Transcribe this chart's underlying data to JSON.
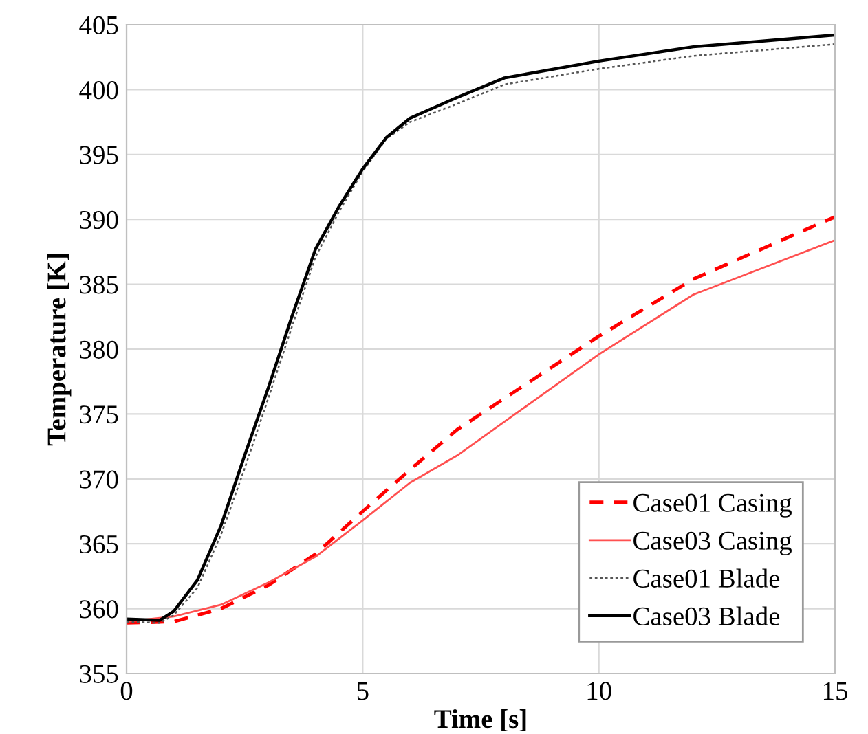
{
  "chart_data": {
    "type": "line",
    "xlabel": "Time [s]",
    "ylabel": "Temperature [K]",
    "xlim": [
      0,
      15
    ],
    "xticks": [
      0,
      5,
      10,
      15
    ],
    "ylim": [
      355,
      405
    ],
    "yticks": [
      355,
      360,
      365,
      370,
      375,
      380,
      385,
      390,
      395,
      400,
      405
    ],
    "grid": true,
    "legend": "bottom right",
    "series": [
      {
        "name": "Case01 Casing",
        "color": "#ff0000",
        "line_style": "dashed",
        "x": [
          0,
          1,
          2,
          3,
          4,
          5,
          6,
          7,
          8,
          10,
          12,
          15
        ],
        "values": [
          358.9,
          359.0,
          360.0,
          361.8,
          364.2,
          367.5,
          370.7,
          373.8,
          376.2,
          381.0,
          385.4,
          390.2
        ]
      },
      {
        "name": "Case03 Casing",
        "color": "#ff5050",
        "line_style": "solid",
        "x": [
          0,
          1,
          2,
          3,
          4,
          5,
          6,
          7,
          8,
          10,
          12,
          15
        ],
        "values": [
          359.0,
          359.4,
          360.3,
          362.0,
          364.0,
          366.8,
          369.7,
          371.8,
          374.4,
          379.6,
          384.2,
          388.4
        ]
      },
      {
        "name": "Case01 Blade",
        "color": "#555555",
        "line_style": "dotted",
        "x": [
          0,
          0.7,
          1,
          1.5,
          2,
          2.5,
          3,
          3.5,
          4,
          4.5,
          5,
          5.5,
          6,
          7,
          8,
          10,
          12,
          15
        ],
        "values": [
          359.0,
          358.9,
          359.5,
          361.6,
          365.7,
          370.8,
          376.2,
          381.7,
          387.1,
          390.6,
          393.7,
          396.2,
          397.5,
          398.9,
          400.4,
          401.6,
          402.6,
          403.5
        ]
      },
      {
        "name": "Case03 Blade",
        "color": "#000000",
        "line_style": "solid",
        "x": [
          0,
          0.7,
          1,
          1.5,
          2,
          2.5,
          3,
          3.5,
          4,
          4.5,
          5,
          5.5,
          6,
          7,
          8,
          10,
          12,
          15
        ],
        "values": [
          359.2,
          359.1,
          359.8,
          362.2,
          366.4,
          371.8,
          377.0,
          382.5,
          387.7,
          391.0,
          393.9,
          396.3,
          397.8,
          399.4,
          400.9,
          402.2,
          403.3,
          404.2
        ]
      }
    ]
  }
}
